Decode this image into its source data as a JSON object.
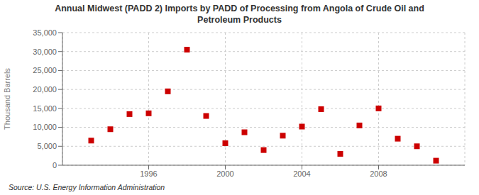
{
  "chart_data": {
    "type": "scatter",
    "title": "Annual Midwest (PADD 2) Imports by PADD of Processing from Angola of Crude Oil and\nPetroleum Products",
    "y_label": "Thousand Barrels",
    "annotations": [
      "Source: U.S. Energy Information Administration"
    ],
    "x": [
      1993,
      1994,
      1995,
      1996,
      1997,
      1998,
      1999,
      2000,
      2001,
      2002,
      2003,
      2004,
      2005,
      2006,
      2007,
      2008,
      2009,
      2010,
      2011
    ],
    "values": [
      6500,
      9500,
      13500,
      13700,
      19500,
      30500,
      13000,
      5800,
      8700,
      4000,
      7800,
      10200,
      14800,
      3000,
      10500,
      15000,
      7000,
      5000,
      1200
    ],
    "color": "#cc0000",
    "marker": "square",
    "xlim": [
      1991.5,
      2012.5
    ],
    "xticks": [
      1996,
      2000,
      2004,
      2008
    ],
    "ylim": [
      0,
      35000
    ],
    "yticks": [
      0,
      {
        "value": 5000,
        "label": "5,000"
      },
      {
        "value": 10000,
        "label": "10,000"
      },
      {
        "value": 15000,
        "label": "15,000"
      },
      {
        "value": 20000,
        "label": "20,000"
      },
      {
        "value": 25000,
        "label": "25,000"
      },
      {
        "value": 30000,
        "label": "30,000"
      },
      {
        "value": 35000,
        "label": "35,000"
      }
    ],
    "grid": true
  }
}
